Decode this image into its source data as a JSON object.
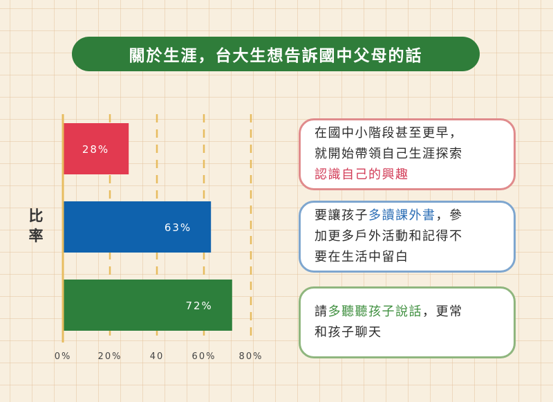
{
  "title": "關於生涯，台大生想告訴國中父母的話",
  "chart_data": {
    "type": "bar",
    "orientation": "horizontal",
    "ylabel": "比率",
    "xlim": [
      0,
      80
    ],
    "x_ticks": [
      "0%",
      "20%",
      "40",
      "60%",
      "80%"
    ],
    "grid": true,
    "bars": [
      {
        "value": 28,
        "label": "28%",
        "color": "#e23a50"
      },
      {
        "value": 63,
        "label": "63%",
        "color": "#0f62ad"
      },
      {
        "value": 72,
        "label": "72%",
        "color": "#2d7f3c"
      }
    ]
  },
  "cards": [
    {
      "lines": [
        [
          {
            "text": "在國中小階段甚至更早，",
            "hl": ""
          }
        ],
        [
          {
            "text": "就開始帶領自己生涯探索",
            "hl": ""
          }
        ],
        [
          {
            "text": "認識自己的興趣",
            "hl": "red"
          }
        ]
      ]
    },
    {
      "lines": [
        [
          {
            "text": "要讓孩子",
            "hl": ""
          },
          {
            "text": "多讀課外書",
            "hl": "blue"
          },
          {
            "text": "，參",
            "hl": ""
          }
        ],
        [
          {
            "text": "加更多戶外活動和記得不",
            "hl": ""
          }
        ],
        [
          {
            "text": "要在生活中留白",
            "hl": ""
          }
        ]
      ]
    },
    {
      "lines": [
        [
          {
            "text": "請",
            "hl": ""
          },
          {
            "text": "多聽聽孩子說話",
            "hl": "green"
          },
          {
            "text": "，更常",
            "hl": ""
          }
        ],
        [
          {
            "text": "和孩子聊天",
            "hl": ""
          }
        ]
      ]
    }
  ]
}
